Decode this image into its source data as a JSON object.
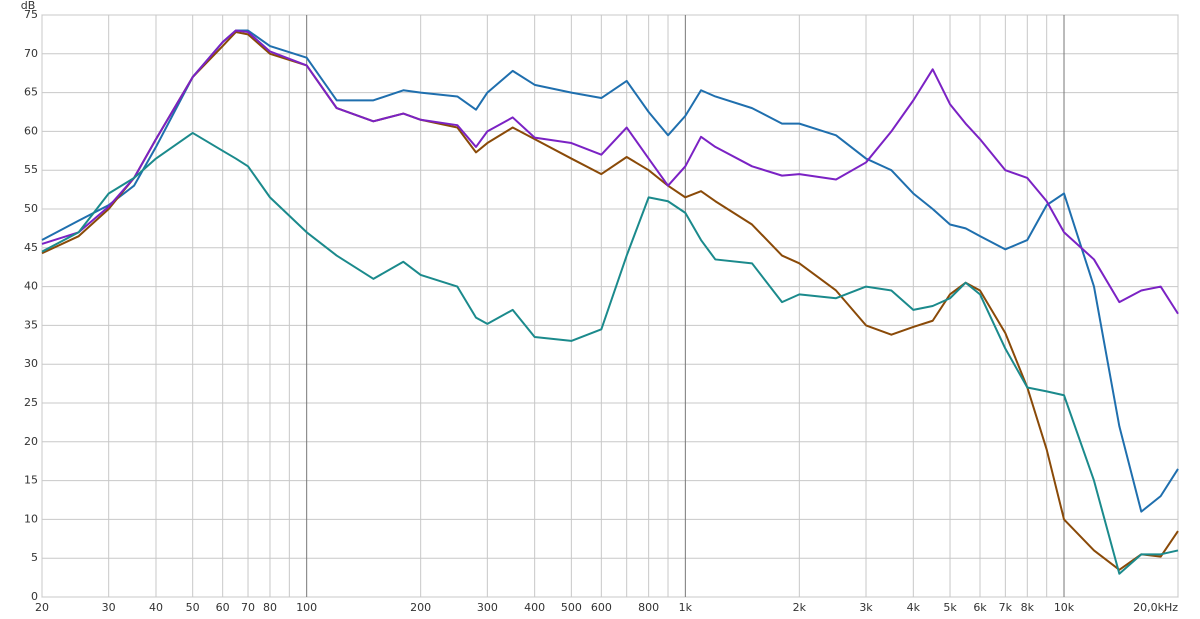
{
  "chart_data": {
    "type": "line",
    "y_label": "dB",
    "log_x": true,
    "grid": true,
    "xlim": [
      20,
      20000
    ],
    "ylim": [
      0,
      75
    ],
    "yticks": [
      0,
      5,
      10,
      15,
      20,
      25,
      30,
      35,
      40,
      45,
      50,
      55,
      60,
      65,
      70,
      75
    ],
    "xticks": [
      20,
      30,
      40,
      50,
      60,
      70,
      80,
      100,
      200,
      300,
      400,
      500,
      600,
      800,
      {
        "value": 1000,
        "label": "1k"
      },
      {
        "value": 2000,
        "label": "2k"
      },
      {
        "value": 3000,
        "label": "3k"
      },
      {
        "value": 4000,
        "label": "4k"
      },
      {
        "value": 5000,
        "label": "5k"
      },
      {
        "value": 6000,
        "label": "6k"
      },
      {
        "value": 7000,
        "label": "7k"
      },
      {
        "value": 8000,
        "label": "8k"
      },
      {
        "value": 10000,
        "label": "10k"
      },
      {
        "value": 20000,
        "label": "20,0kHz"
      }
    ],
    "xgrid_minor": [
      90,
      700,
      900,
      9000
    ],
    "x": [
      20,
      25,
      30,
      35,
      40,
      50,
      60,
      65,
      70,
      80,
      100,
      120,
      150,
      180,
      200,
      250,
      280,
      300,
      350,
      400,
      500,
      600,
      700,
      800,
      900,
      1000,
      1100,
      1200,
      1500,
      1800,
      2000,
      2500,
      3000,
      3500,
      4000,
      4500,
      5000,
      5500,
      6000,
      7000,
      8000,
      9000,
      10000,
      12000,
      14000,
      16000,
      18000,
      20000
    ],
    "series": [
      {
        "color": "#1f6fae",
        "values": [
          46,
          48.5,
          50.5,
          53,
          58,
          67,
          71.5,
          73,
          73,
          71,
          69.5,
          64,
          64,
          65.3,
          65,
          64.5,
          62.8,
          65,
          67.8,
          66,
          65,
          64.3,
          66.5,
          62.5,
          59.5,
          62,
          65.3,
          64.5,
          63,
          61,
          61,
          59.5,
          56.5,
          55,
          52,
          50,
          48,
          47.5,
          46.5,
          44.8,
          46,
          50.5,
          52,
          40,
          22,
          11,
          13,
          16.5
        ]
      },
      {
        "color": "#8a4a08",
        "values": [
          44.3,
          46.5,
          50,
          54,
          59,
          67,
          71,
          72.8,
          72.5,
          70,
          68.5,
          63,
          61.3,
          62.3,
          61.5,
          60.5,
          57.3,
          58.5,
          60.5,
          59,
          56.5,
          54.5,
          56.7,
          55,
          53,
          51.5,
          52.3,
          51,
          48,
          44,
          43,
          39.5,
          35,
          33.8,
          34.8,
          35.6,
          39,
          40.5,
          39.5,
          34,
          27,
          19,
          10,
          6,
          3.5,
          5.5,
          5.2,
          8.5
        ]
      },
      {
        "color": "#7b22c4",
        "values": [
          45.5,
          47,
          50.3,
          54,
          59,
          67,
          71.5,
          73,
          72.8,
          70.3,
          68.5,
          63,
          61.3,
          62.3,
          61.5,
          60.8,
          58,
          60,
          61.8,
          59.2,
          58.5,
          57,
          60.5,
          56.5,
          53,
          55.5,
          59.3,
          58,
          55.5,
          54.3,
          54.5,
          53.8,
          56,
          60,
          64,
          68,
          63.5,
          61,
          59,
          55,
          54,
          51,
          47,
          43.5,
          38,
          39.5,
          40,
          36.5
        ]
      },
      {
        "color": "#1b8a8c",
        "values": [
          44.5,
          47,
          52,
          54,
          56.5,
          59.8,
          57.5,
          56.5,
          55.5,
          51.5,
          47,
          44,
          41,
          43.2,
          41.5,
          40,
          36,
          35.2,
          37,
          33.5,
          33,
          34.5,
          44,
          51.5,
          51,
          49.5,
          46,
          43.5,
          43,
          38,
          39,
          38.5,
          40,
          39.5,
          37,
          37.5,
          38.5,
          40.5,
          39,
          32,
          27,
          26.5,
          26,
          15,
          3,
          5.5,
          5.5,
          6
        ]
      }
    ]
  }
}
